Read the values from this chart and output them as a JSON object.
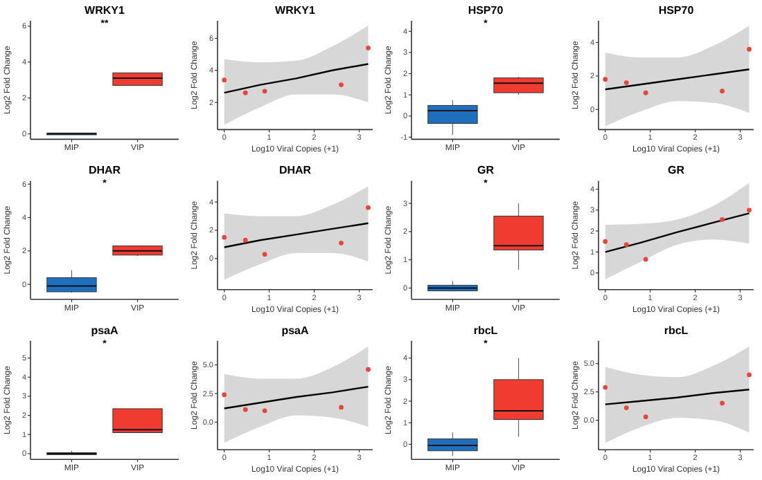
{
  "chart_data": [
    {
      "type": "box",
      "title": "WRKY1",
      "ylabel": "Log2 Fold Change",
      "categories": [
        "MIP",
        "VIP"
      ],
      "colors": [
        "#1f6fbf",
        "#f03c30"
      ],
      "ylim": [
        -0.3,
        6.3
      ],
      "yticks": [
        0,
        2,
        4,
        6
      ],
      "annotations": [
        "**"
      ],
      "boxes": [
        {
          "low": -0.05,
          "q1": -0.05,
          "median": 0,
          "q3": 0.05,
          "high": 0.05
        },
        {
          "low": 2.7,
          "q1": 2.7,
          "median": 3.1,
          "q3": 3.4,
          "high": 3.4
        }
      ]
    },
    {
      "type": "scatter",
      "title": "WRKY1",
      "xlabel": "Log10 Viral Copies (+1)",
      "ylabel": "Log2 Fold Change",
      "xlim": [
        -0.15,
        3.3
      ],
      "xticks": [
        0,
        1,
        2,
        3
      ],
      "ylim": [
        0.3,
        7.1
      ],
      "yticks": [
        2,
        4,
        6
      ],
      "series": [
        {
          "type": "scatter",
          "marker": "circle",
          "color": "#e8453c",
          "x": [
            0,
            0.47,
            0.9,
            2.6,
            3.2
          ],
          "values": [
            3.4,
            2.6,
            2.7,
            3.1,
            5.4
          ]
        },
        {
          "type": "line",
          "color": "#000000",
          "x": [
            0,
            0.8,
            1.6,
            2.4,
            3.2
          ],
          "values": [
            2.6,
            3.1,
            3.5,
            4.0,
            4.4
          ],
          "lower": [
            0.6,
            1.7,
            2.5,
            2.5,
            2.0
          ],
          "upper": [
            4.7,
            4.5,
            4.6,
            5.5,
            6.8
          ]
        }
      ]
    },
    {
      "type": "box",
      "title": "HSP70",
      "ylabel": "Log2 Fold Change",
      "categories": [
        "MIP",
        "VIP"
      ],
      "colors": [
        "#1f6fbf",
        "#f03c30"
      ],
      "ylim": [
        -1.1,
        4.5
      ],
      "yticks": [
        -1,
        0,
        1,
        2,
        3,
        4
      ],
      "annotations": [
        "*"
      ],
      "boxes": [
        {
          "low": -0.9,
          "q1": -0.35,
          "median": 0.25,
          "q3": 0.5,
          "high": 0.75
        },
        {
          "low": 1.0,
          "q1": 1.1,
          "median": 1.55,
          "q3": 1.8,
          "high": 1.85
        }
      ]
    },
    {
      "type": "scatter",
      "title": "HSP70",
      "xlabel": "Log10 Viral Copies (+1)",
      "ylabel": "Log2 Fold Change",
      "xlim": [
        -0.15,
        3.3
      ],
      "xticks": [
        0,
        1,
        2,
        3
      ],
      "ylim": [
        -1.2,
        5.3
      ],
      "yticks": [
        0,
        2,
        4
      ],
      "series": [
        {
          "type": "scatter",
          "marker": "circle",
          "color": "#e8453c",
          "x": [
            0,
            0.47,
            0.9,
            2.6,
            3.2
          ],
          "values": [
            1.8,
            1.6,
            1.0,
            1.1,
            3.6
          ]
        },
        {
          "type": "line",
          "color": "#000000",
          "x": [
            0,
            0.8,
            1.6,
            2.4,
            3.2
          ],
          "values": [
            1.2,
            1.5,
            1.8,
            2.1,
            2.4
          ],
          "lower": [
            -1.0,
            -0.1,
            0.5,
            0.4,
            -0.2
          ],
          "upper": [
            3.4,
            3.1,
            3.1,
            3.8,
            5.0
          ]
        }
      ]
    },
    {
      "type": "box",
      "title": "DHAR",
      "ylabel": "Log2 Fold Change",
      "categories": [
        "MIP",
        "VIP"
      ],
      "colors": [
        "#1f6fbf",
        "#f03c30"
      ],
      "ylim": [
        -0.9,
        6.2
      ],
      "yticks": [
        0,
        2,
        4,
        6
      ],
      "annotations": [
        "*"
      ],
      "boxes": [
        {
          "low": -0.5,
          "q1": -0.45,
          "median": -0.1,
          "q3": 0.4,
          "high": 0.85
        },
        {
          "low": 1.7,
          "q1": 1.75,
          "median": 2.0,
          "q3": 2.3,
          "high": 2.3
        }
      ]
    },
    {
      "type": "scatter",
      "title": "DHAR",
      "xlabel": "Log10 Viral Copies (+1)",
      "ylabel": "Log2 Fold Change",
      "xlim": [
        -0.15,
        3.3
      ],
      "xticks": [
        0,
        1,
        2,
        3
      ],
      "ylim": [
        -2.2,
        5.5
      ],
      "yticks": [
        0,
        2,
        4
      ],
      "series": [
        {
          "type": "scatter",
          "marker": "circle",
          "color": "#e8453c",
          "x": [
            0,
            0.47,
            0.9,
            2.6,
            3.2
          ],
          "values": [
            1.5,
            1.3,
            0.3,
            1.1,
            3.6
          ]
        },
        {
          "type": "line",
          "color": "#000000",
          "x": [
            0,
            0.8,
            1.6,
            2.4,
            3.2
          ],
          "values": [
            0.8,
            1.3,
            1.7,
            2.1,
            2.5
          ],
          "lower": [
            -1.5,
            -0.4,
            0.4,
            0.4,
            -0.2
          ],
          "upper": [
            3.2,
            3.0,
            3.0,
            3.8,
            5.1
          ]
        }
      ]
    },
    {
      "type": "box",
      "title": "GR",
      "ylabel": "Log2 Fold Change",
      "categories": [
        "MIP",
        "VIP"
      ],
      "colors": [
        "#1f6fbf",
        "#f03c30"
      ],
      "ylim": [
        -0.4,
        3.8
      ],
      "yticks": [
        0,
        1,
        2,
        3
      ],
      "annotations": [
        "*"
      ],
      "boxes": [
        {
          "low": -0.1,
          "q1": -0.1,
          "median": 0,
          "q3": 0.1,
          "high": 0.25
        },
        {
          "low": 0.65,
          "q1": 1.35,
          "median": 1.5,
          "q3": 2.55,
          "high": 3.0
        }
      ]
    },
    {
      "type": "scatter",
      "title": "GR",
      "xlabel": "Log10 Viral Copies (+1)",
      "ylabel": "Log2 Fold Change",
      "xlim": [
        -0.15,
        3.3
      ],
      "xticks": [
        0,
        1,
        2,
        3
      ],
      "ylim": [
        -0.8,
        4.4
      ],
      "yticks": [
        0,
        1,
        2,
        3,
        4
      ],
      "series": [
        {
          "type": "scatter",
          "marker": "circle",
          "color": "#e8453c",
          "x": [
            0,
            0.47,
            0.9,
            2.6,
            3.2
          ],
          "values": [
            1.5,
            1.35,
            0.65,
            2.55,
            3.0
          ]
        },
        {
          "type": "line",
          "color": "#000000",
          "x": [
            0,
            0.8,
            1.6,
            2.4,
            3.2
          ],
          "values": [
            1.0,
            1.45,
            1.95,
            2.4,
            2.85
          ],
          "lower": [
            -0.3,
            0.55,
            1.35,
            1.6,
            1.4
          ],
          "upper": [
            2.3,
            2.35,
            2.55,
            3.2,
            4.3
          ]
        }
      ]
    },
    {
      "type": "box",
      "title": "psaA",
      "ylabel": "Log2 Fold Change",
      "categories": [
        "MIP",
        "VIP"
      ],
      "colors": [
        "#1f6fbf",
        "#f03c30"
      ],
      "ylim": [
        -0.3,
        5.9
      ],
      "yticks": [
        0,
        1,
        2,
        3,
        4,
        5
      ],
      "annotations": [
        "*"
      ],
      "boxes": [
        {
          "low": -0.05,
          "q1": -0.05,
          "median": 0,
          "q3": 0.05,
          "high": 0.15
        },
        {
          "low": 1.1,
          "q1": 1.1,
          "median": 1.25,
          "q3": 2.35,
          "high": 2.35
        }
      ]
    },
    {
      "type": "scatter",
      "title": "psaA",
      "xlabel": "Log10 Viral Copies (+1)",
      "ylabel": "Log2 Fold Change",
      "xlim": [
        -0.15,
        3.3
      ],
      "xticks": [
        0,
        1,
        2,
        3
      ],
      "ylim": [
        -2.4,
        7.1
      ],
      "yticks": [
        {
          "value": 0,
          "label": "0.0"
        },
        {
          "value": 2.5,
          "label": "2.5"
        },
        {
          "value": 5,
          "label": "5.0"
        }
      ],
      "series": [
        {
          "type": "scatter",
          "marker": "circle",
          "color": "#e8453c",
          "x": [
            0,
            0.47,
            0.9,
            2.6,
            3.2
          ],
          "values": [
            2.4,
            1.1,
            1.0,
            1.3,
            4.6
          ]
        },
        {
          "type": "line",
          "color": "#000000",
          "x": [
            0,
            0.8,
            1.6,
            2.4,
            3.2
          ],
          "values": [
            1.2,
            1.7,
            2.2,
            2.6,
            3.1
          ],
          "lower": [
            -1.8,
            -0.4,
            0.6,
            0.4,
            -0.4
          ],
          "upper": [
            4.2,
            3.8,
            3.8,
            4.8,
            6.6
          ]
        }
      ]
    },
    {
      "type": "box",
      "title": "rbcL",
      "ylabel": "Log2 Fold Change",
      "categories": [
        "MIP",
        "VIP"
      ],
      "colors": [
        "#1f6fbf",
        "#f03c30"
      ],
      "ylim": [
        -0.7,
        4.8
      ],
      "yticks": [
        0,
        1,
        2,
        3,
        4
      ],
      "annotations": [
        "*"
      ],
      "boxes": [
        {
          "low": -0.55,
          "q1": -0.3,
          "median": -0.05,
          "q3": 0.25,
          "high": 0.55
        },
        {
          "low": 0.35,
          "q1": 1.15,
          "median": 1.55,
          "q3": 3.0,
          "high": 4.0
        }
      ]
    },
    {
      "type": "scatter",
      "title": "rbcL",
      "xlabel": "Log10 Viral Copies (+1)",
      "ylabel": "Log2 Fold Change",
      "xlim": [
        -0.15,
        3.3
      ],
      "xticks": [
        0,
        1,
        2,
        3
      ],
      "ylim": [
        -2.6,
        7.0
      ],
      "yticks": [
        {
          "value": 0,
          "label": "0.0"
        },
        {
          "value": 2.5,
          "label": "2.5"
        },
        {
          "value": 5,
          "label": "5.0"
        }
      ],
      "series": [
        {
          "type": "scatter",
          "marker": "circle",
          "color": "#e8453c",
          "x": [
            0,
            0.47,
            0.9,
            2.6,
            3.2
          ],
          "values": [
            2.9,
            1.1,
            0.3,
            1.5,
            4.0
          ]
        },
        {
          "type": "line",
          "color": "#000000",
          "x": [
            0,
            0.8,
            1.6,
            2.4,
            3.2
          ],
          "values": [
            1.4,
            1.7,
            2.0,
            2.4,
            2.7
          ],
          "lower": [
            -2.0,
            -0.6,
            0.2,
            0.0,
            -1.1
          ],
          "upper": [
            4.7,
            4.0,
            3.8,
            4.8,
            6.5
          ]
        }
      ]
    }
  ]
}
